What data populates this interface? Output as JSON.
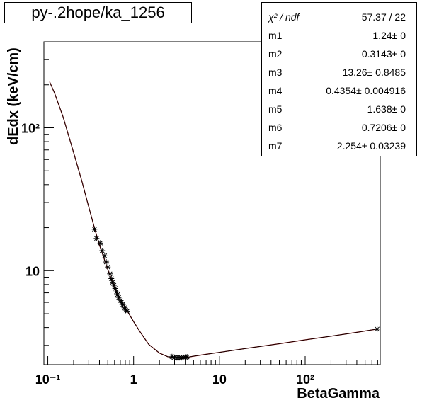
{
  "title": "py-.2hope/ka_1256",
  "stats": [
    {
      "name": "χ² / ndf",
      "value": "57.37 / 22"
    },
    {
      "name": "m1",
      "value": "1.24± 0"
    },
    {
      "name": "m2",
      "value": "0.3143± 0"
    },
    {
      "name": "m3",
      "value": "13.26± 0.8485"
    },
    {
      "name": "m4",
      "value": "0.4354± 0.004916"
    },
    {
      "name": "m5",
      "value": "1.638± 0"
    },
    {
      "name": "m6",
      "value": "0.7206± 0"
    },
    {
      "name": "m7",
      "value": "2.254± 0.03239"
    }
  ],
  "chart_data": {
    "type": "scatter",
    "title": "py-.2hope/ka_1256",
    "xlabel": "BetaGamma",
    "ylabel": "dEdx (keV/cm)",
    "xscale": "log",
    "yscale": "log",
    "xlim": [
      0.09,
      750
    ],
    "ylim": [
      2.2,
      400
    ],
    "x_ticks": [
      "10⁻¹",
      "1",
      "10",
      "10²"
    ],
    "y_ticks": [
      "10",
      "10²"
    ],
    "grid": false,
    "legend": "top-right",
    "series": [
      {
        "kind": "points",
        "x": [
          0.35,
          0.37,
          0.41,
          0.43,
          0.46,
          0.48,
          0.5,
          0.53,
          0.55,
          0.57,
          0.59,
          0.61,
          0.63,
          0.65,
          0.67,
          0.7,
          0.72,
          0.75,
          0.78,
          0.81,
          0.84,
          2.8,
          3.0,
          3.2,
          3.4,
          3.6,
          3.8,
          4.0,
          4.2,
          690
        ],
        "y": [
          19.5,
          16.8,
          15.6,
          13.8,
          12.7,
          11.5,
          10.6,
          9.5,
          8.8,
          8.3,
          7.9,
          7.5,
          7.1,
          6.8,
          6.5,
          6.2,
          6.0,
          5.8,
          5.5,
          5.3,
          5.2,
          2.5,
          2.47,
          2.46,
          2.46,
          2.46,
          2.47,
          2.48,
          2.49,
          3.9
        ]
      },
      {
        "kind": "fit",
        "x": [
          0.105,
          0.12,
          0.15,
          0.2,
          0.25,
          0.3,
          0.35,
          0.4,
          0.5,
          0.6,
          0.7,
          0.8,
          1.0,
          1.2,
          1.5,
          2.0,
          2.5,
          3.0,
          3.5,
          4.0,
          5.0,
          7.0,
          10,
          20,
          50,
          100,
          200,
          400,
          690
        ],
        "y": [
          210,
          175,
          120,
          67,
          42,
          28,
          19.8,
          15.1,
          10.2,
          7.6,
          6.3,
          5.5,
          4.4,
          3.7,
          3.05,
          2.65,
          2.5,
          2.46,
          2.45,
          2.46,
          2.52,
          2.6,
          2.68,
          2.85,
          3.08,
          3.28,
          3.48,
          3.7,
          3.9
        ]
      }
    ]
  }
}
